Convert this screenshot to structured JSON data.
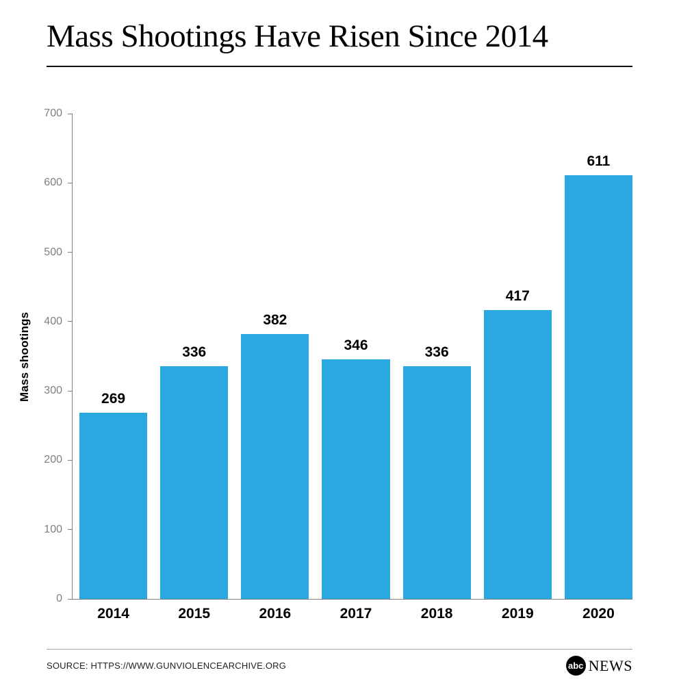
{
  "header": {
    "title": "Mass Shootings Have Risen Since 2014"
  },
  "chart_data": {
    "type": "bar",
    "title": "Mass Shootings Have Risen Since 2014",
    "categories": [
      "2014",
      "2015",
      "2016",
      "2017",
      "2018",
      "2019",
      "2020"
    ],
    "values": [
      269,
      336,
      382,
      346,
      336,
      417,
      611
    ],
    "xlabel": "",
    "ylabel": "Mass shootings",
    "ylim": [
      0,
      700
    ],
    "yticks": [
      0,
      100,
      200,
      300,
      400,
      500,
      600,
      700
    ],
    "bar_color": "#2BA8E0",
    "grid": false,
    "legend": false,
    "value_labels_shown": true
  },
  "footer": {
    "source": "SOURCE: HTTPS://WWW.GUNVIOLENCEARCHIVE.ORG",
    "logo": {
      "abc": "abc",
      "news": "NEWS"
    }
  }
}
